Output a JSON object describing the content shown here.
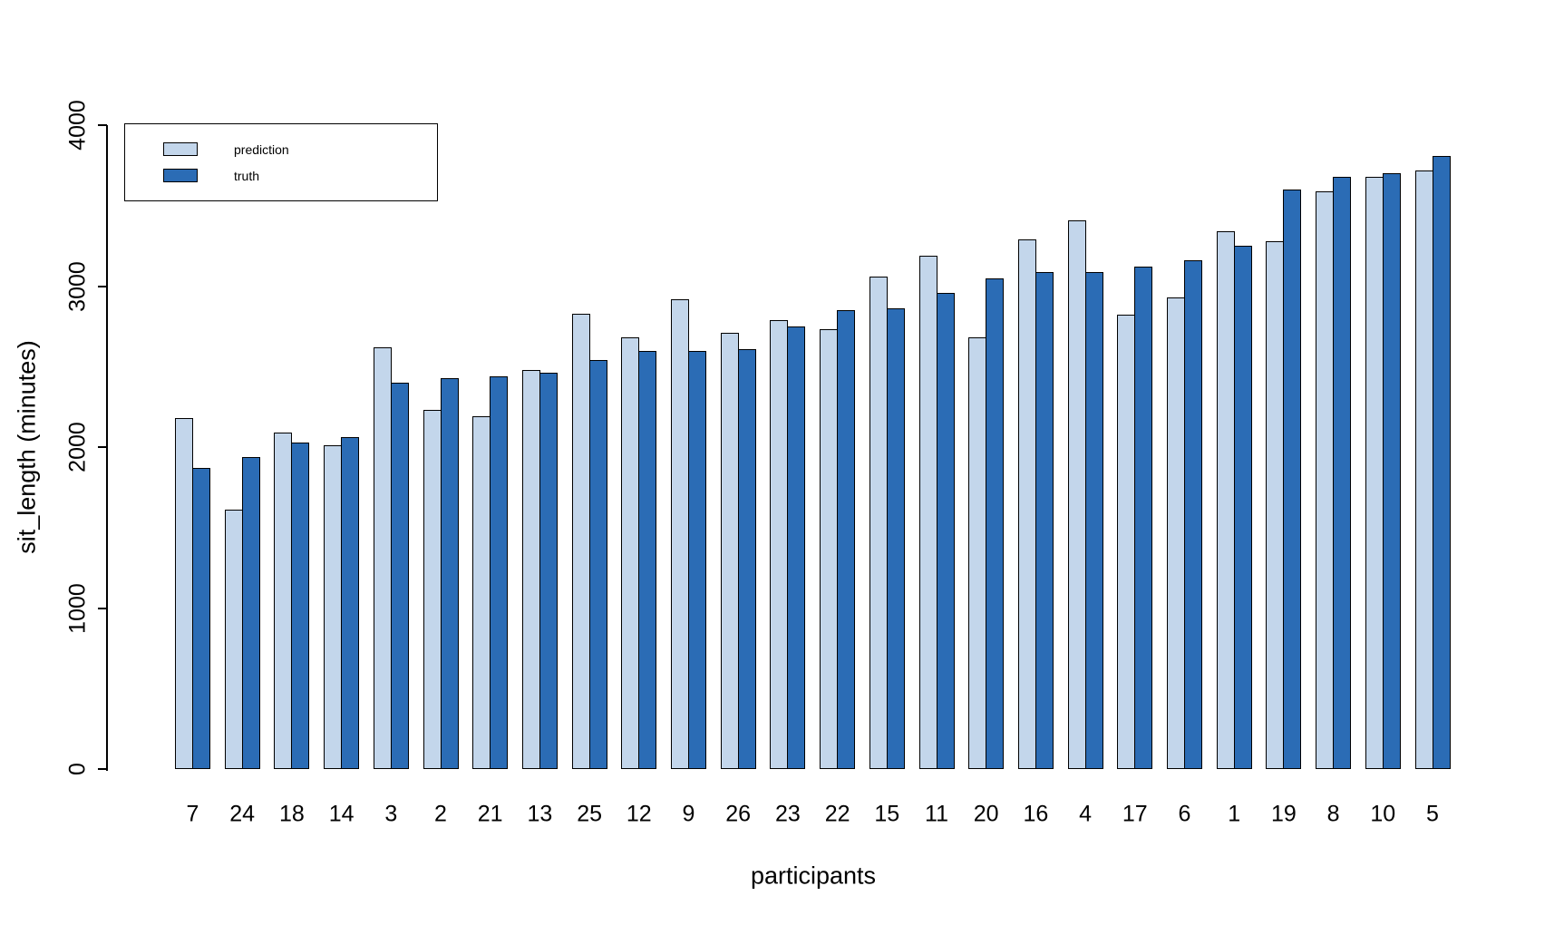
{
  "chart_data": {
    "type": "bar",
    "title": "",
    "xlabel": "participants",
    "ylabel": "sit_length (minutes)",
    "ylim": [
      0,
      4000
    ],
    "yticks": [
      0,
      1000,
      2000,
      3000,
      4000
    ],
    "grid": false,
    "legend_position": "top-left",
    "categories": [
      "7",
      "24",
      "18",
      "14",
      "3",
      "2",
      "21",
      "13",
      "25",
      "12",
      "9",
      "26",
      "23",
      "22",
      "15",
      "11",
      "20",
      "16",
      "4",
      "17",
      "6",
      "1",
      "19",
      "8",
      "10",
      "5"
    ],
    "series": [
      {
        "name": "prediction",
        "color": "#c3d6eb",
        "values": [
          2180,
          1610,
          2090,
          2010,
          2620,
          2230,
          2190,
          2480,
          2830,
          2680,
          2920,
          2710,
          2790,
          2730,
          3060,
          3190,
          2680,
          3290,
          3410,
          2820,
          2930,
          3340,
          3280,
          3590,
          3680,
          3720
        ]
      },
      {
        "name": "truth",
        "color": "#2b6cb5",
        "values": [
          1870,
          1940,
          2030,
          2060,
          2400,
          2430,
          2440,
          2460,
          2540,
          2600,
          2600,
          2610,
          2750,
          2850,
          2860,
          2960,
          3050,
          3090,
          3090,
          3120,
          3160,
          3250,
          3600,
          3680,
          3700,
          3810
        ]
      }
    ],
    "colors": {
      "bar_border": "#000000",
      "axis": "#000000",
      "text": "#000000",
      "background": "#ffffff"
    }
  }
}
